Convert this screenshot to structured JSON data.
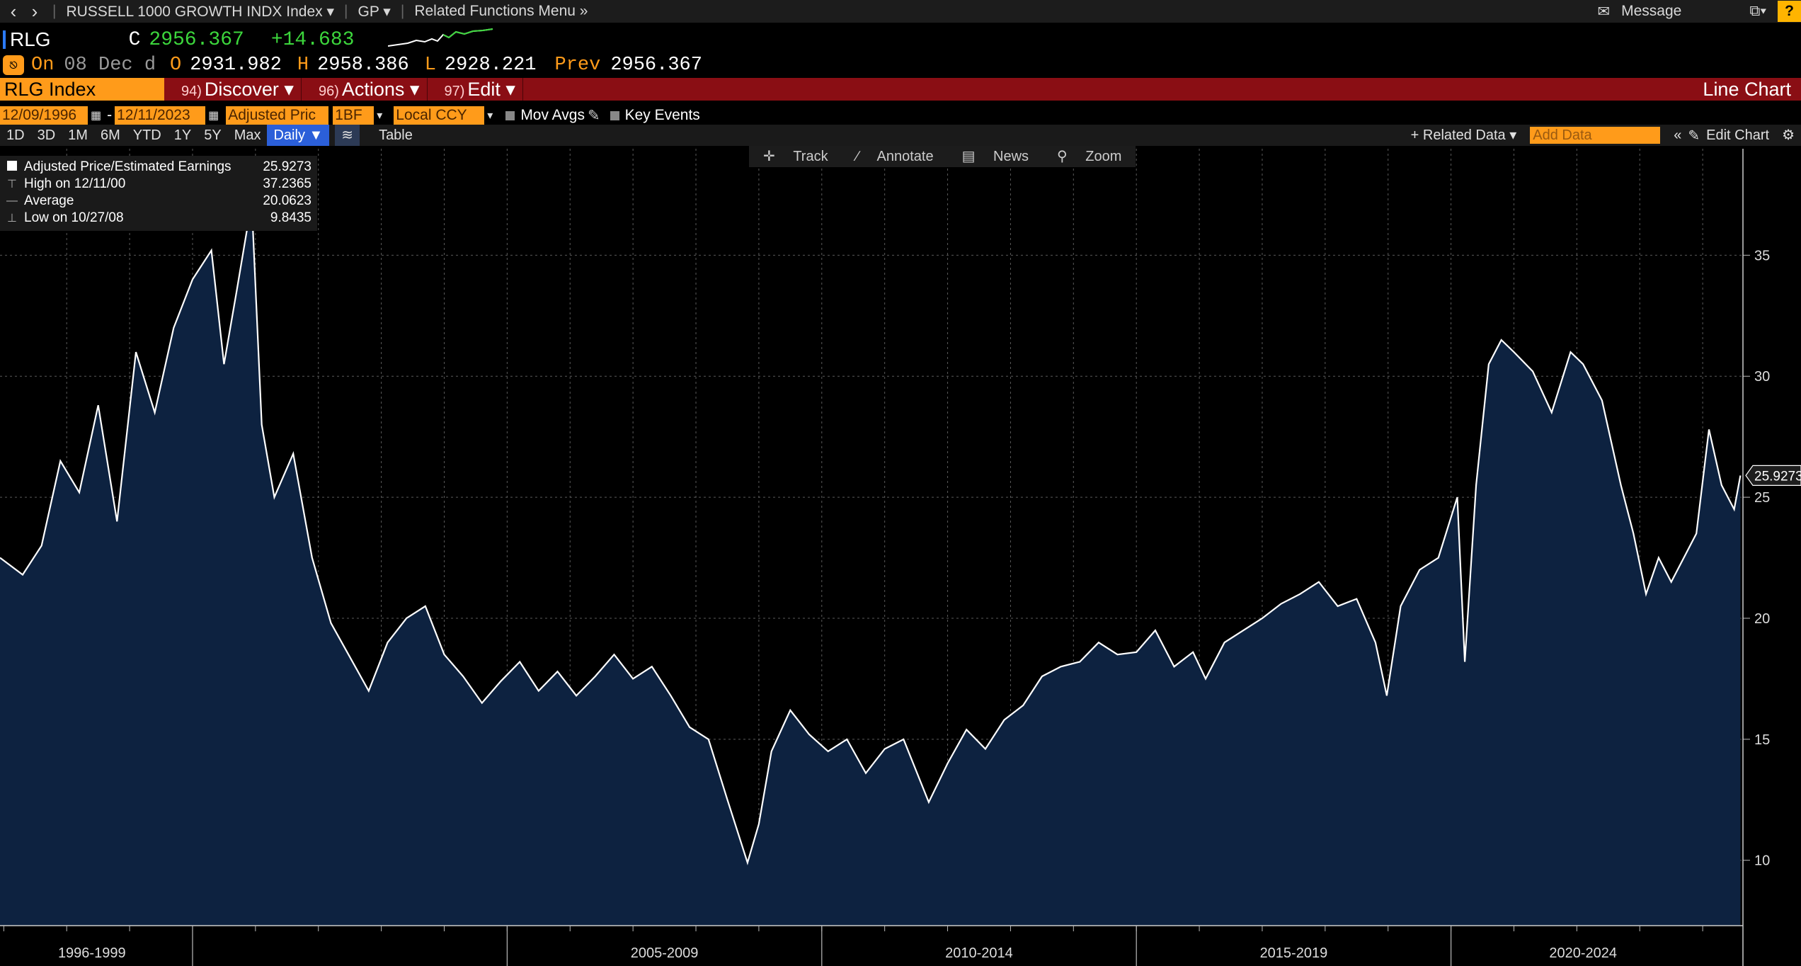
{
  "topbar": {
    "back_icon": "chevron-left-icon",
    "forward_icon": "chevron-right-icon",
    "security": "RUSSELL 1000 GROWTH INDX Index ▾",
    "gp": "GP ▾",
    "related": "Related Functions Menu »",
    "message": "Message",
    "help": "?"
  },
  "quote": {
    "ticker": "RLG",
    "c_label": "C",
    "close": "2956.367",
    "change": "+14.683",
    "on_label": "On",
    "date": "08 Dec d",
    "o_label": "O",
    "open": "2931.982",
    "h_label": "H",
    "high": "2958.386",
    "l_label": "L",
    "low": "2928.221",
    "prev_label": "Prev",
    "prev": "2956.367"
  },
  "redbar": {
    "security": "RLG Index",
    "discover_num": "94)",
    "discover": "Discover ▾",
    "actions_num": "96)",
    "actions": "Actions ▾",
    "edit_num": "97)",
    "edit": "Edit ▾",
    "title": "Line Chart"
  },
  "controls": {
    "start_date": "12/09/1996",
    "dash": "-",
    "end_date": "12/11/2023",
    "field": "Adjusted Pric",
    "est": "1BF",
    "ccy": "Local CCY",
    "mov_avgs": "Mov Avgs",
    "key_events": "Key Events"
  },
  "ranges": {
    "buttons": [
      "1D",
      "3D",
      "1M",
      "6M",
      "YTD",
      "1Y",
      "5Y",
      "Max"
    ],
    "period": "Daily ▼",
    "table": "Table",
    "related_data": "+ Related Data ▾",
    "add_data_placeholder": "Add Data",
    "edit_chart": "Edit Chart"
  },
  "tools": {
    "track": "Track",
    "annotate": "Annotate",
    "news": "News",
    "zoom": "Zoom"
  },
  "legend": {
    "series": "Adjusted Price/Estimated Earnings",
    "last": "25.9273",
    "high_label": "High on 12/11/00",
    "high": "37.2365",
    "avg_label": "Average",
    "avg": "20.0623",
    "low_label": "Low on 10/27/08",
    "low": "9.8435"
  },
  "colors": {
    "background": "#000000",
    "area_fill": "#0d2240",
    "line": "#ffffff",
    "accent": "#ff9b1a",
    "redbar": "#8a0e14",
    "up": "#3cd63c"
  },
  "chart_data": {
    "type": "area",
    "title": "Line Chart",
    "ylabel": "",
    "xlabel": "",
    "ylim": [
      7.3,
      39.4
    ],
    "xlim": [
      1996.94,
      2024.64
    ],
    "yticks": [
      10,
      15,
      20,
      25,
      30,
      35
    ],
    "x_tick_labels": [
      "1996-1999",
      "2005-2009",
      "2010-2014",
      "2015-2019",
      "2020-2024"
    ],
    "last_value_label": "25.9273",
    "grid": true,
    "series": [
      {
        "name": "Adjusted Price/Estimated Earnings",
        "x": [
          1996.94,
          1997.3,
          1997.6,
          1997.9,
          1998.2,
          1998.5,
          1998.8,
          1999.1,
          1999.4,
          1999.7,
          2000.0,
          2000.3,
          2000.5,
          2000.7,
          2000.94,
          2001.1,
          2001.3,
          2001.6,
          2001.9,
          2002.2,
          2002.5,
          2002.8,
          2003.1,
          2003.4,
          2003.7,
          2004.0,
          2004.3,
          2004.6,
          2004.9,
          2005.2,
          2005.5,
          2005.8,
          2006.1,
          2006.4,
          2006.7,
          2007.0,
          2007.3,
          2007.6,
          2007.9,
          2008.2,
          2008.5,
          2008.82,
          2009.0,
          2009.2,
          2009.5,
          2009.8,
          2010.1,
          2010.4,
          2010.7,
          2011.0,
          2011.3,
          2011.7,
          2012.0,
          2012.3,
          2012.6,
          2012.9,
          2013.2,
          2013.5,
          2013.8,
          2014.1,
          2014.4,
          2014.7,
          2015.0,
          2015.3,
          2015.6,
          2015.9,
          2016.1,
          2016.4,
          2016.7,
          2017.0,
          2017.3,
          2017.6,
          2017.9,
          2018.2,
          2018.5,
          2018.8,
          2018.98,
          2019.2,
          2019.5,
          2019.8,
          2020.1,
          2020.22,
          2020.4,
          2020.6,
          2020.8,
          2021.0,
          2021.3,
          2021.6,
          2021.9,
          2022.1,
          2022.4,
          2022.7,
          2022.9,
          2023.1,
          2023.3,
          2023.5,
          2023.7,
          2023.9,
          2024.1,
          2024.3,
          2024.5,
          2024.6
        ],
        "values": [
          22.5,
          21.8,
          23.0,
          26.5,
          25.2,
          28.8,
          24.0,
          31.0,
          28.5,
          32.0,
          34.0,
          35.2,
          30.5,
          33.5,
          37.2,
          28.0,
          25.0,
          26.8,
          22.5,
          19.8,
          18.4,
          17.0,
          19.0,
          20.0,
          20.5,
          18.5,
          17.6,
          16.5,
          17.4,
          18.2,
          17.0,
          17.8,
          16.8,
          17.6,
          18.5,
          17.5,
          18.0,
          16.8,
          15.5,
          15.0,
          12.5,
          9.9,
          11.5,
          14.5,
          16.2,
          15.2,
          14.5,
          15.0,
          13.6,
          14.6,
          15.0,
          12.4,
          14.0,
          15.4,
          14.6,
          15.8,
          16.4,
          17.6,
          18.0,
          18.2,
          19.0,
          18.5,
          18.6,
          19.5,
          18.0,
          18.6,
          17.5,
          19.0,
          19.5,
          20.0,
          20.6,
          21.0,
          21.5,
          20.5,
          20.8,
          19.0,
          16.8,
          20.5,
          22.0,
          22.5,
          25.0,
          18.2,
          25.5,
          30.5,
          31.5,
          31.0,
          30.2,
          28.5,
          31.0,
          30.5,
          29.0,
          25.5,
          23.5,
          21.0,
          22.5,
          21.5,
          22.5,
          23.5,
          27.8,
          25.5,
          24.5,
          25.9
        ]
      }
    ]
  }
}
